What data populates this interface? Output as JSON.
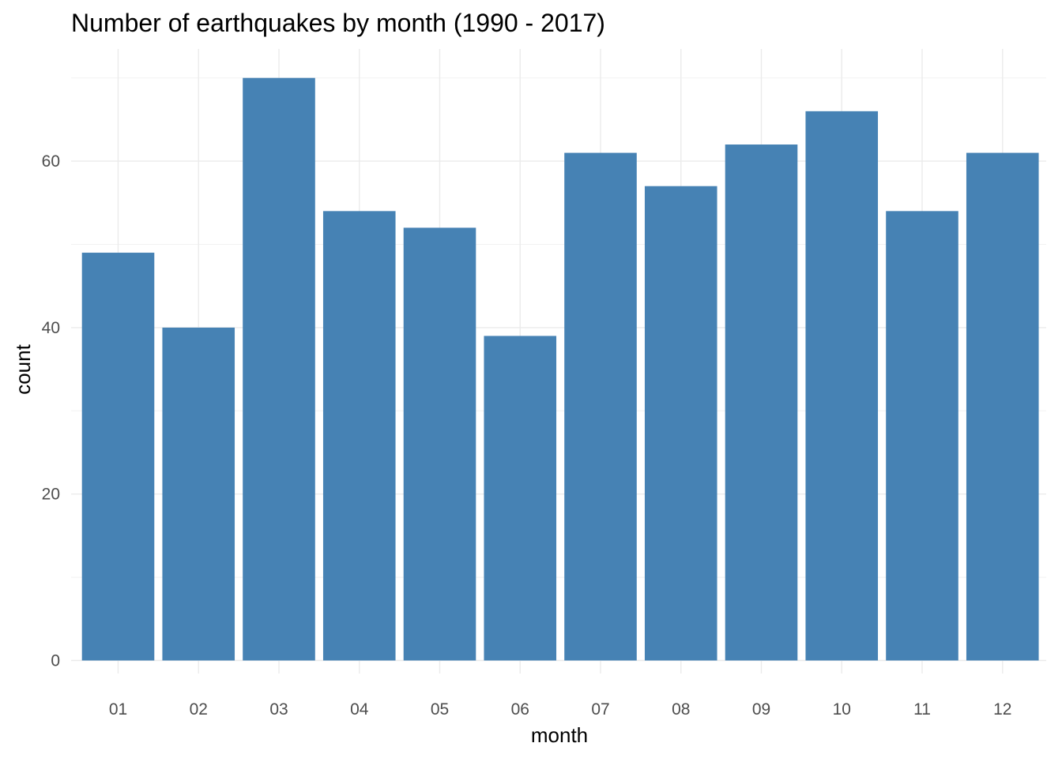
{
  "chart_data": {
    "type": "bar",
    "title": "Number of earthquakes by month (1990 - 2017)",
    "xlabel": "month",
    "ylabel": "count",
    "categories": [
      "01",
      "02",
      "03",
      "04",
      "05",
      "06",
      "07",
      "08",
      "09",
      "10",
      "11",
      "12"
    ],
    "values": [
      49,
      40,
      70,
      54,
      52,
      39,
      61,
      57,
      62,
      66,
      54,
      61
    ],
    "ylim": [
      0,
      73.5
    ],
    "yticks": [
      0,
      20,
      40,
      60
    ],
    "yticks_labels": [
      "0",
      "20",
      "40",
      "60"
    ],
    "grid": true,
    "legend": "none",
    "bar_color": "#4682b4"
  }
}
